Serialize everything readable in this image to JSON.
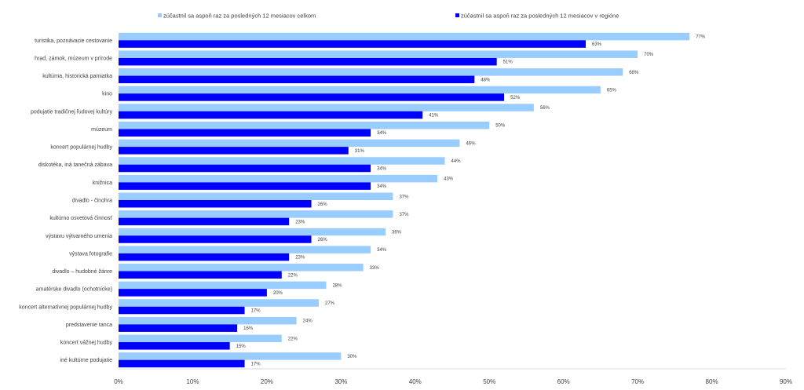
{
  "chart_data": {
    "type": "bar",
    "orientation": "horizontal",
    "categories": [
      "turistika, poznávacie cestovanie",
      "hrad, zámok, múzeum v prírode",
      "kultúrna, historická pamiatka",
      "kino",
      "podujatie tradičnej ľudovej kultúry",
      "múzeum",
      "koncert populárnej hudby",
      "diskotéka, iná tanečná zábava",
      "knižnica",
      "divadlo - činohra",
      "kultúrno osvetová činnosť",
      "výstavu výtvarného umenia",
      "výstava fotografie",
      "divadlo – hudobné žánre",
      "amatérske divadlo (ochotnícke)",
      "koncert alternatívnej populárnej hudby",
      "predstavenie tanca",
      "koncert vážnej hudby",
      "iné kultúrne podujatie"
    ],
    "series": [
      {
        "name": "zúčastnil sa aspoň raz za posledných 12 mesiacov celkom",
        "color": "#99ccff",
        "values": [
          77,
          70,
          68,
          65,
          56,
          50,
          46,
          44,
          43,
          37,
          37,
          36,
          34,
          33,
          28,
          27,
          24,
          22,
          30
        ]
      },
      {
        "name": "zúčastnil sa aspoň raz za posledných 12 mesiacov v regióne",
        "color": "#0000ff",
        "values": [
          63,
          51,
          48,
          52,
          41,
          34,
          31,
          34,
          34,
          26,
          23,
          26,
          23,
          22,
          20,
          17,
          16,
          15,
          17
        ]
      }
    ],
    "value_suffix": "%",
    "xlim": [
      0,
      90
    ],
    "xticks": [
      "0%",
      "10%",
      "20%",
      "30%",
      "40%",
      "50%",
      "60%",
      "70%",
      "80%",
      "90%"
    ],
    "legend_position": "top",
    "grid": false
  }
}
